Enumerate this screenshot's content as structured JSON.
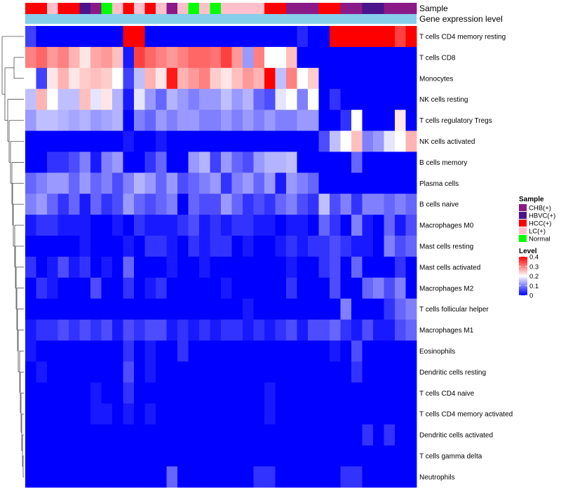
{
  "chart_data": {
    "type": "heatmap",
    "annotation_rows": [
      "Sample",
      "Gene expression level"
    ],
    "legend_sample_title": "Sample",
    "legend_level_title": "Level",
    "legend_level_ticks": [
      "0.4",
      "0.3",
      "0.2",
      "0.1",
      "0"
    ],
    "level_range": [
      0,
      0.4
    ],
    "groups": [
      {
        "name": "CHB(+)",
        "color": "#8B1A89"
      },
      {
        "name": "HBVC(+)",
        "color": "#4A148C"
      },
      {
        "name": "HCC(+)",
        "color": "#FF0000"
      },
      {
        "name": "LC(+)",
        "color": "#FFC0CB"
      },
      {
        "name": "Normal",
        "color": "#00FF00"
      }
    ],
    "column_groups": [
      "HCC(+)",
      "HCC(+)",
      "LC(+)",
      "HCC(+)",
      "HCC(+)",
      "HBVC(+)",
      "CHB(+)",
      "Normal",
      "LC(+)",
      "HCC(+)",
      "LC(+)",
      "HCC(+)",
      "LC(+)",
      "CHB(+)",
      "LC(+)",
      "Normal",
      "LC(+)",
      "Normal",
      "LC(+)",
      "LC(+)",
      "LC(+)",
      "LC(+)",
      "HCC(+)",
      "HCC(+)",
      "CHB(+)",
      "CHB(+)",
      "CHB(+)",
      "HCC(+)",
      "HCC(+)",
      "CHB(+)",
      "CHB(+)",
      "HBVC(+)",
      "HBVC(+)",
      "CHB(+)",
      "CHB(+)",
      "CHB(+)"
    ],
    "expression_bar_color": "#87CEEB",
    "rows": [
      {
        "name": "T cells CD4 memory resting",
        "values": [
          0.05,
          0,
          0,
          0,
          0,
          0,
          0,
          0,
          0,
          0.4,
          0.4,
          0,
          0,
          0,
          0,
          0,
          0,
          0,
          0,
          0,
          0,
          0,
          0,
          0,
          0,
          0.03,
          0,
          0,
          0.4,
          0.4,
          0.4,
          0.4,
          0.4,
          0.4,
          0.35,
          0.4
        ]
      },
      {
        "name": "T cells CD8",
        "values": [
          0.3,
          0.32,
          0.28,
          0.3,
          0.26,
          0.22,
          0.27,
          0.28,
          0.25,
          0.02,
          0.35,
          0.32,
          0.3,
          0.28,
          0.3,
          0.32,
          0.32,
          0.31,
          0.35,
          0.28,
          0.12,
          0.3,
          0.2,
          0.2,
          0.25,
          0,
          0,
          0,
          0,
          0,
          0,
          0,
          0,
          0,
          0,
          0
        ]
      },
      {
        "name": "Monocytes",
        "values": [
          0.2,
          0.05,
          0.22,
          0.26,
          0.22,
          0.24,
          0.25,
          0.24,
          0.2,
          0.05,
          0.15,
          0.26,
          0.22,
          0.38,
          0.26,
          0.28,
          0.3,
          0.24,
          0.22,
          0.25,
          0.28,
          0.26,
          0.4,
          0.15,
          0.3,
          0.2,
          0.24,
          0,
          0,
          0,
          0,
          0,
          0,
          0,
          0,
          0
        ]
      },
      {
        "name": "NK cells resting",
        "values": [
          0.15,
          0.26,
          0.2,
          0.15,
          0.15,
          0.25,
          0.18,
          0.22,
          0.14,
          0.02,
          0.18,
          0.12,
          0.08,
          0.14,
          0.12,
          0.1,
          0.12,
          0.12,
          0.15,
          0.12,
          0.14,
          0.08,
          0.06,
          0.18,
          0.2,
          0.1,
          0.2,
          0,
          0.04,
          0,
          0,
          0,
          0,
          0,
          0,
          0
        ]
      },
      {
        "name": "T cells regulatory  Tregs",
        "values": [
          0.12,
          0.15,
          0.15,
          0.14,
          0.13,
          0.14,
          0.12,
          0.13,
          0.14,
          0,
          0.1,
          0.08,
          0.12,
          0.1,
          0.12,
          0.12,
          0.1,
          0.1,
          0.12,
          0.1,
          0.12,
          0.1,
          0.12,
          0.1,
          0.1,
          0.12,
          0.12,
          0,
          0,
          0.04,
          0.2,
          0,
          0,
          0,
          0.22,
          0
        ]
      },
      {
        "name": "NK cells activated",
        "values": [
          0,
          0,
          0,
          0,
          0,
          0,
          0,
          0,
          0,
          0.02,
          0,
          0,
          0.02,
          0,
          0,
          0,
          0,
          0,
          0,
          0,
          0,
          0,
          0,
          0,
          0,
          0,
          0,
          0.06,
          0.15,
          0.2,
          0.25,
          0.1,
          0.12,
          0.18,
          0.2,
          0.26
        ]
      },
      {
        "name": "B cells memory",
        "values": [
          0,
          0,
          0.04,
          0.04,
          0.06,
          0.1,
          0.02,
          0.1,
          0.12,
          0,
          0,
          0.04,
          0.08,
          0,
          0,
          0.12,
          0.14,
          0.05,
          0.12,
          0.08,
          0.06,
          0.12,
          0.14,
          0.14,
          0.15,
          0,
          0,
          0,
          0,
          0,
          0.08,
          0,
          0,
          0,
          0,
          0
        ]
      },
      {
        "name": "Plasma cells",
        "values": [
          0.08,
          0.1,
          0.12,
          0.12,
          0.08,
          0.12,
          0.08,
          0.1,
          0.06,
          0.1,
          0.14,
          0.12,
          0.08,
          0.12,
          0.06,
          0.08,
          0.1,
          0.12,
          0.04,
          0.1,
          0.12,
          0.08,
          0.12,
          0.02,
          0.12,
          0.1,
          0.08,
          0,
          0,
          0,
          0,
          0,
          0,
          0,
          0,
          0
        ]
      },
      {
        "name": "B cells naive",
        "values": [
          0.1,
          0.12,
          0.08,
          0.04,
          0.08,
          0.02,
          0.08,
          0.04,
          0.06,
          0.12,
          0.08,
          0.06,
          0.08,
          0.1,
          0,
          0.08,
          0.06,
          0.06,
          0.12,
          0.08,
          0.04,
          0.06,
          0.04,
          0.08,
          0.1,
          0.06,
          0.04,
          0.15,
          0.06,
          0.1,
          0.04,
          0.1,
          0.1,
          0.08,
          0.1,
          0.08
        ]
      },
      {
        "name": "Macrophages M0",
        "values": [
          0.02,
          0.04,
          0.04,
          0.02,
          0.02,
          0.02,
          0,
          0,
          0.02,
          0,
          0.04,
          0.02,
          0.02,
          0.02,
          0.04,
          0.06,
          0.02,
          0.04,
          0.02,
          0.04,
          0.04,
          0.02,
          0.02,
          0,
          0.02,
          0.02,
          0,
          0.08,
          0.04,
          0,
          0.1,
          0.02,
          0,
          0.08,
          0.02,
          0.06
        ]
      },
      {
        "name": "Mast cells resting",
        "values": [
          0,
          0,
          0,
          0,
          0,
          0.02,
          0,
          0,
          0,
          0.02,
          0,
          0.04,
          0.04,
          0.02,
          0,
          0.04,
          0.02,
          0.04,
          0.04,
          0,
          0.02,
          0,
          0,
          0.02,
          0.04,
          0.02,
          0.04,
          0.04,
          0.06,
          0.04,
          0.02,
          0.02,
          0,
          0.1,
          0.06,
          0.08
        ]
      },
      {
        "name": "Mast cells activated",
        "values": [
          0.04,
          0,
          0.02,
          0.06,
          0.02,
          0.04,
          0,
          0.02,
          0,
          0.08,
          0,
          0,
          0,
          0.02,
          0,
          0,
          0.02,
          0,
          0,
          0,
          0,
          0,
          0,
          0,
          0.02,
          0,
          0,
          0.04,
          0.06,
          0,
          0.08,
          0,
          0,
          0,
          0.04,
          0
        ]
      },
      {
        "name": "Macrophages M2",
        "values": [
          0,
          0.04,
          0.02,
          0,
          0,
          0,
          0.06,
          0,
          0,
          0.04,
          0,
          0.02,
          0.04,
          0,
          0,
          0,
          0,
          0,
          0.02,
          0,
          0,
          0,
          0,
          0,
          0.04,
          0,
          0,
          0,
          0.06,
          0,
          0,
          0.08,
          0.1,
          0.06,
          0.1,
          0
        ]
      },
      {
        "name": "T cells follicular helper",
        "values": [
          0,
          0,
          0,
          0,
          0,
          0,
          0,
          0,
          0,
          0,
          0,
          0,
          0,
          0,
          0,
          0,
          0,
          0,
          0,
          0,
          0.02,
          0,
          0,
          0,
          0,
          0,
          0,
          0,
          0,
          0.1,
          0,
          0,
          0,
          0.04,
          0.08,
          0.1
        ]
      },
      {
        "name": "Macrophages M1",
        "values": [
          0.02,
          0.04,
          0.04,
          0.06,
          0.04,
          0.06,
          0.04,
          0.06,
          0.02,
          0.06,
          0.04,
          0.06,
          0.06,
          0.02,
          0.04,
          0.02,
          0.04,
          0.02,
          0.04,
          0.04,
          0.02,
          0.04,
          0.02,
          0.04,
          0.06,
          0.02,
          0.06,
          0.06,
          0.08,
          0.04,
          0.02,
          0.06,
          0.02,
          0.02,
          0.06,
          0.08
        ]
      },
      {
        "name": "Eosinophils",
        "values": [
          0.02,
          0,
          0,
          0,
          0,
          0,
          0,
          0,
          0,
          0.04,
          0,
          0.02,
          0,
          0,
          0.04,
          0,
          0,
          0,
          0,
          0,
          0,
          0,
          0,
          0,
          0,
          0,
          0,
          0,
          0.02,
          0,
          0.06,
          0,
          0,
          0,
          0,
          0
        ]
      },
      {
        "name": "Dendritic cells resting",
        "values": [
          0,
          0.02,
          0,
          0,
          0,
          0,
          0,
          0,
          0,
          0.06,
          0,
          0.02,
          0,
          0,
          0,
          0,
          0,
          0,
          0,
          0,
          0,
          0,
          0,
          0,
          0,
          0,
          0,
          0,
          0,
          0,
          0.04,
          0,
          0,
          0,
          0,
          0
        ]
      },
      {
        "name": "T cells CD4 naive",
        "values": [
          0,
          0,
          0,
          0,
          0,
          0,
          0.02,
          0,
          0,
          0.04,
          0,
          0,
          0,
          0,
          0,
          0,
          0,
          0,
          0,
          0,
          0,
          0,
          0.02,
          0,
          0,
          0,
          0,
          0,
          0,
          0,
          0,
          0,
          0,
          0,
          0,
          0
        ]
      },
      {
        "name": "T cells CD4 memory activated",
        "values": [
          0,
          0,
          0,
          0,
          0,
          0,
          0.02,
          0.02,
          0,
          0.02,
          0,
          0.02,
          0,
          0,
          0,
          0,
          0,
          0,
          0,
          0,
          0,
          0,
          0.02,
          0,
          0,
          0,
          0,
          0,
          0,
          0,
          0,
          0,
          0,
          0,
          0,
          0
        ]
      },
      {
        "name": "Dendritic cells activated",
        "values": [
          0,
          0,
          0,
          0,
          0,
          0,
          0,
          0,
          0,
          0,
          0,
          0,
          0,
          0,
          0,
          0,
          0,
          0,
          0,
          0,
          0,
          0,
          0,
          0,
          0,
          0,
          0,
          0,
          0,
          0,
          0,
          0.04,
          0,
          0.04,
          0,
          0
        ]
      },
      {
        "name": "T cells gamma delta",
        "values": [
          0,
          0,
          0,
          0,
          0,
          0,
          0,
          0,
          0,
          0,
          0,
          0,
          0,
          0,
          0,
          0,
          0,
          0,
          0,
          0,
          0,
          0,
          0,
          0,
          0,
          0,
          0,
          0,
          0,
          0,
          0,
          0,
          0,
          0,
          0,
          0
        ]
      },
      {
        "name": "Neutrophils",
        "values": [
          0,
          0,
          0,
          0,
          0,
          0,
          0,
          0,
          0,
          0,
          0,
          0,
          0,
          0.08,
          0,
          0,
          0,
          0,
          0,
          0,
          0,
          0.04,
          0.04,
          0,
          0,
          0,
          0,
          0,
          0,
          0.04,
          0.04,
          0,
          0,
          0,
          0,
          0
        ]
      }
    ]
  }
}
